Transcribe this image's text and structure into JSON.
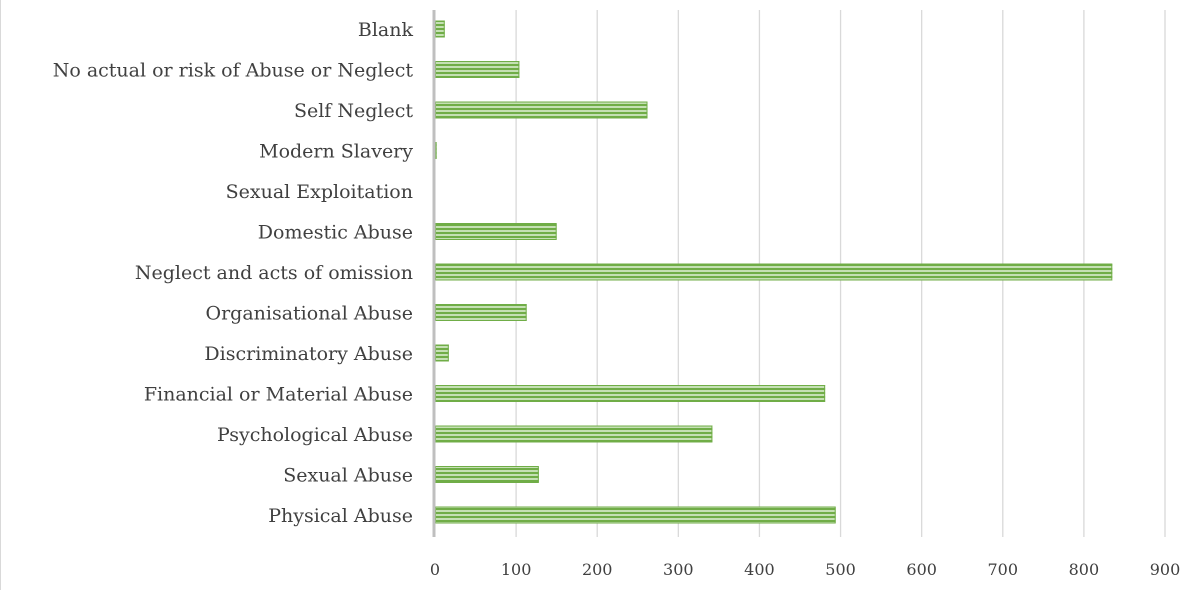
{
  "chart_data": {
    "type": "bar",
    "orientation": "horizontal",
    "title": "",
    "xlabel": "",
    "ylabel": "",
    "categories": [
      "Blank",
      "No actual or risk of Abuse or Neglect",
      "Self Neglect",
      "Modern Slavery",
      "Sexual Exploitation",
      "Domestic Abuse",
      "Neglect and acts of omission",
      "Organisational Abuse",
      "Discriminatory Abuse",
      "Financial or Material Abuse",
      "Psychological Abuse",
      "Sexual Abuse",
      "Physical Abuse"
    ],
    "values": [
      12,
      104,
      262,
      2,
      0,
      150,
      835,
      113,
      17,
      481,
      342,
      128,
      494
    ],
    "xlim": [
      0,
      900
    ],
    "xticks": [
      0,
      100,
      200,
      300,
      400,
      500,
      600,
      700,
      800,
      900
    ],
    "xtick_labels": [
      "0",
      "100",
      "200",
      "300",
      "400",
      "500",
      "600",
      "700",
      "800",
      "900"
    ],
    "grid": true,
    "legend": "none",
    "colors": {
      "bar_fill": "#70ad47",
      "bar_stripe": "#c5e0b4",
      "gridline": "#d9d9d9",
      "axis": "#bfbfbf",
      "text": "#404040"
    },
    "bar_pattern": "horizontal-stripes"
  }
}
